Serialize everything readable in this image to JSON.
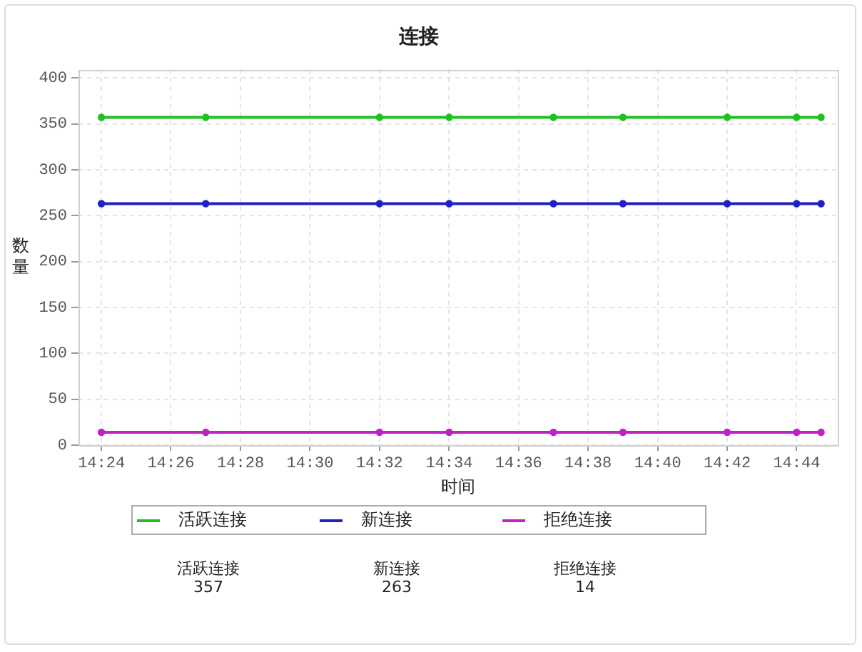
{
  "chart_data": {
    "type": "line",
    "title": "连接",
    "xlabel": "时间",
    "ylabel": "数量",
    "x": [
      14.4,
      14.45,
      14.5333,
      14.5667,
      14.6167,
      14.65,
      14.7,
      14.7333,
      14.745
    ],
    "series": [
      {
        "name": "活跃连接",
        "color": "#20c020",
        "values": [
          357,
          357,
          357,
          357,
          357,
          357,
          357,
          357,
          357
        ]
      },
      {
        "name": "新连接",
        "color": "#2020c8",
        "values": [
          263,
          263,
          263,
          263,
          263,
          263,
          263,
          263,
          263
        ]
      },
      {
        "name": "拒绝连接",
        "color": "#c020c8",
        "values": [
          14,
          14,
          14,
          14,
          14,
          14,
          14,
          14,
          14
        ]
      }
    ],
    "xlim": [
      14.389,
      14.753
    ],
    "xticks": [
      {
        "value": 14.4,
        "label": "14:24"
      },
      {
        "value": 14.4333,
        "label": "14:26"
      },
      {
        "value": 14.4667,
        "label": "14:28"
      },
      {
        "value": 14.5,
        "label": "14:30"
      },
      {
        "value": 14.5333,
        "label": "14:32"
      },
      {
        "value": 14.5667,
        "label": "14:34"
      },
      {
        "value": 14.6,
        "label": "14:36"
      },
      {
        "value": 14.6333,
        "label": "14:38"
      },
      {
        "value": 14.6667,
        "label": "14:40"
      },
      {
        "value": 14.7,
        "label": "14:42"
      },
      {
        "value": 14.7333,
        "label": "14:44"
      }
    ],
    "ylim": [
      0,
      409
    ],
    "yticks": [
      0,
      50,
      100,
      150,
      200,
      250,
      300,
      350,
      400
    ],
    "grid": true,
    "legend": "bottom",
    "marker": "circle",
    "line_style": "solid",
    "annotations": [
      "357",
      "263",
      "14"
    ]
  }
}
